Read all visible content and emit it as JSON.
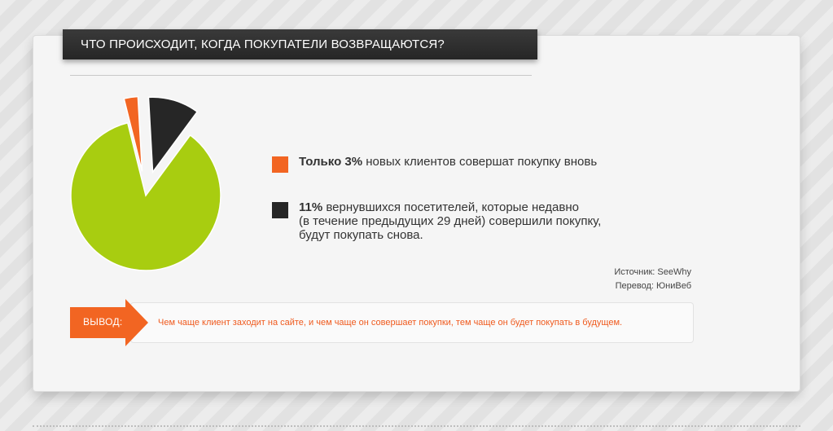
{
  "header": {
    "title": "ЧТО ПРОИСХОДИТ, КОГДА ПОКУПАТЕЛИ ВОЗВРАЩАЮТСЯ?"
  },
  "chart_data": {
    "type": "pie",
    "slices": [
      {
        "label": "Только 3%",
        "value": 3,
        "color": "#f26522"
      },
      {
        "label": "11%",
        "value": 11,
        "color": "#262626"
      },
      {
        "label": "",
        "value": 86,
        "color": "#a8cd10"
      }
    ]
  },
  "legend": [
    {
      "bold": "Только 3%",
      "text": " новых клиентов совершат покупку вновь",
      "color": "#f26522"
    },
    {
      "bold": "11%",
      "text": " вернувшихся посетителей, которые недавно",
      "line2": "(в течение предыдущих 29 дней) совершили покупку,",
      "line3": "будут покупать снова.",
      "color": "#262626"
    }
  ],
  "source": {
    "line1": "Источник: SeeWhy",
    "line2": "Перевод: ЮниВеб"
  },
  "conclusion": {
    "label": "ВЫВОД:",
    "text": "Чем чаще клиент заходит на сайте, и чем чаще он совершает покупки, тем чаще он будет покупать в будущем.",
    "accent": "#f26522"
  }
}
